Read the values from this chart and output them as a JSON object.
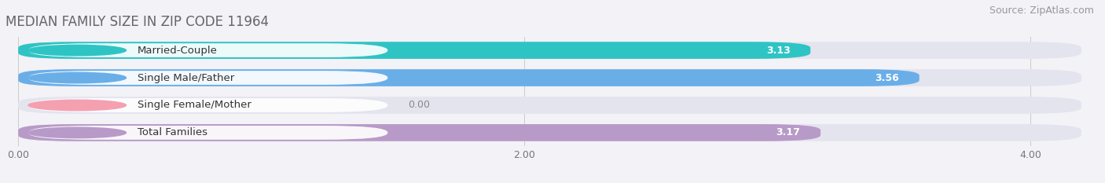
{
  "title": "MEDIAN FAMILY SIZE IN ZIP CODE 11964",
  "source": "Source: ZipAtlas.com",
  "categories": [
    "Married-Couple",
    "Single Male/Father",
    "Single Female/Mother",
    "Total Families"
  ],
  "values": [
    3.13,
    3.56,
    0.0,
    3.17
  ],
  "bar_colors": [
    "#2ec4c4",
    "#6aaee8",
    "#f4a0b0",
    "#b89ac8"
  ],
  "xlim_max": 4.25,
  "xticks": [
    0.0,
    2.0,
    4.0
  ],
  "xtick_labels": [
    "0.00",
    "2.00",
    "4.00"
  ],
  "bar_height": 0.62,
  "background_color": "#f2f2f7",
  "bar_background_color": "#e4e4ef",
  "title_fontsize": 12,
  "source_fontsize": 9,
  "label_fontsize": 9.5,
  "value_fontsize": 9
}
